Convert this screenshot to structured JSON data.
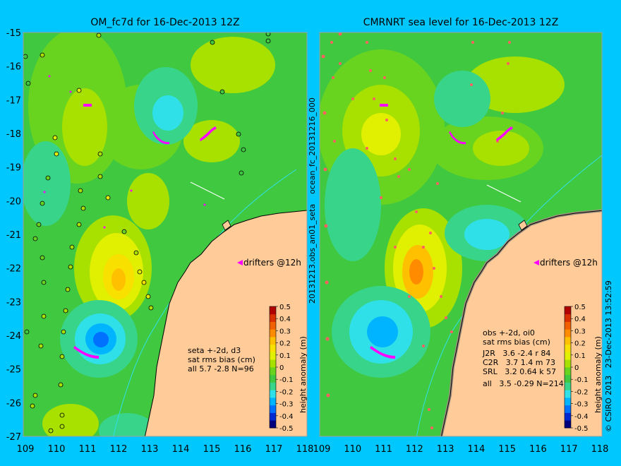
{
  "left_panel": {
    "title": "OM_fc7d for 16-Dec-2013 12Z",
    "stats_lines": [
      "seta +-2d, d3",
      "sat rms bias (cm)",
      "all 5.7 -2.8 N=96"
    ]
  },
  "right_panel": {
    "title": "CMRNRT sea level  for 16-Dec-2013 12Z",
    "stats_lines": [
      "obs +-2d, oi0",
      "sat rms bias (cm)",
      "J2R   3.6 -2.4 r 84",
      "C2R   3.7 1.4 m 73",
      "SRL   3.2 0.64 k 57",
      "all   3.5 -0.29 N=214"
    ]
  },
  "drifters_label": "drifters @12h",
  "side_label": "20131213.obs_an01_seta    ocean_fc_20131216_000",
  "credit": "© CSIRO 2013   23-Dec-2013 13:52:59",
  "colorbar": {
    "label": "height anomaly (m)",
    "ticks": [
      "0.5",
      "0.4",
      "0.3",
      "0.2",
      "0.1",
      "0",
      "-0.1",
      "-0.2",
      "-0.3",
      "-0.4",
      "-0.5"
    ],
    "colors": [
      "#00007f",
      "#0028d0",
      "#0070ff",
      "#00b4ff",
      "#30e0e8",
      "#38d48a",
      "#40c840",
      "#68d420",
      "#a8e000",
      "#e0f000",
      "#f8e000",
      "#ffc000",
      "#ff8c00",
      "#f06000",
      "#d83000",
      "#b00000"
    ]
  },
  "axes": {
    "y_ticks": [
      "-15",
      "-16",
      "-17",
      "-18",
      "-19",
      "-20",
      "-21",
      "-22",
      "-23",
      "-24",
      "-25",
      "-26",
      "-27"
    ],
    "x_ticks": [
      "109",
      "110",
      "111",
      "112",
      "113",
      "114",
      "115",
      "116",
      "117",
      "118"
    ]
  },
  "colors": {
    "background": "#00c8ff",
    "land": "#ffcc99",
    "drifter": "#ff00ff"
  }
}
